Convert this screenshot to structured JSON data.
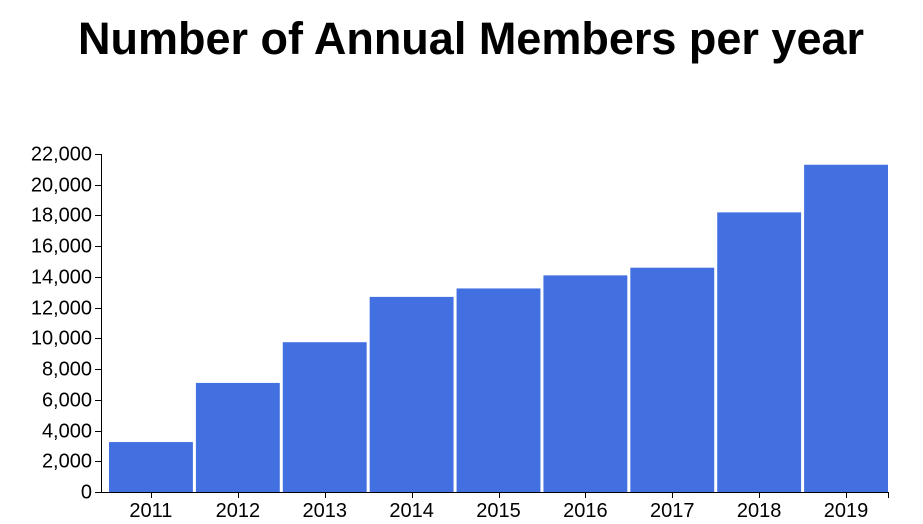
{
  "chart_data": {
    "type": "bar",
    "title": "Number of Annual Members per year",
    "xlabel": "",
    "ylabel": "",
    "categories": [
      "2011",
      "2012",
      "2013",
      "2014",
      "2015",
      "2016",
      "2017",
      "2018",
      "2019"
    ],
    "values": [
      3250,
      7100,
      9750,
      12700,
      13250,
      14100,
      14600,
      18200,
      21300
    ],
    "ylim": [
      0,
      22000
    ],
    "yticks": [
      0,
      2000,
      4000,
      6000,
      8000,
      10000,
      12000,
      14000,
      16000,
      18000,
      20000,
      22000
    ],
    "ytick_labels": [
      "0",
      "2,000",
      "4,000",
      "6,000",
      "8,000",
      "10,000",
      "12,000",
      "14,000",
      "16,000",
      "18,000",
      "20,000",
      "22,000"
    ],
    "bar_color": "#4370e0",
    "grid": false,
    "legend": "none"
  }
}
